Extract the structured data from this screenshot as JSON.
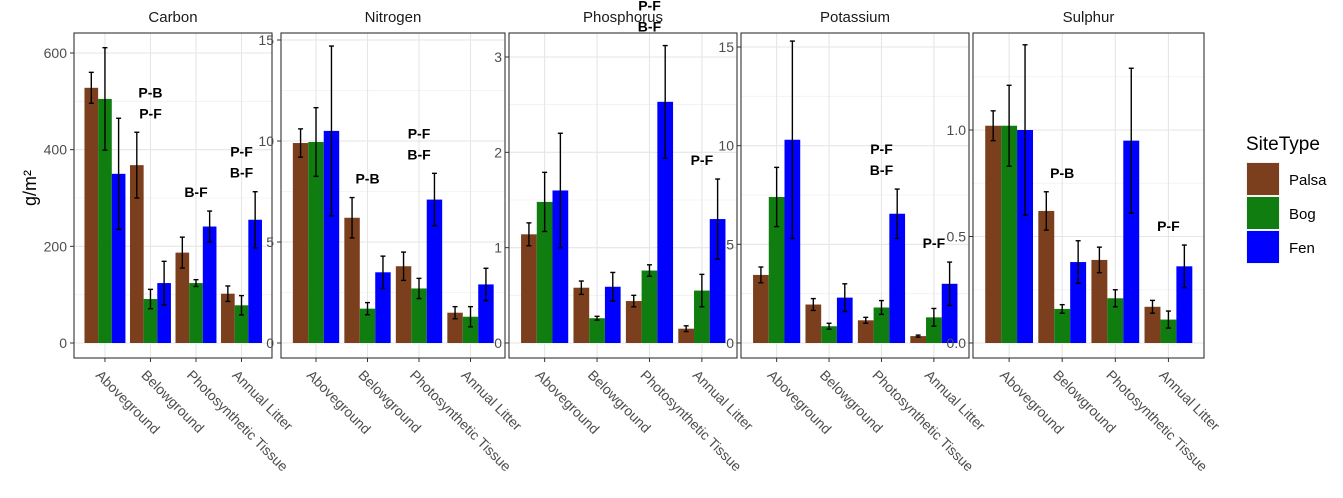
{
  "chart_data": {
    "type": "bar",
    "ylabel": "g/m²",
    "categories": [
      "Aboveground",
      "Belowground",
      "Photosynthetic Tissue",
      "Annual Litter"
    ],
    "legend": {
      "title": "SiteType",
      "position": "right",
      "entries": [
        {
          "name": "Palsa",
          "color": "#7b3f1e"
        },
        {
          "name": "Bog",
          "color": "#0f7d0f"
        },
        {
          "name": "Fen",
          "color": "#0000ff"
        }
      ]
    },
    "grid": true,
    "panels": [
      {
        "title": "Carbon",
        "ylim": [
          -10,
          665
        ],
        "yticks": [
          0,
          200,
          400,
          600
        ],
        "yticklabels": [
          "0",
          "200",
          "400",
          "600"
        ],
        "series": [
          {
            "name": "Palsa",
            "values": [
              528,
              368,
              187,
              102
            ],
            "errors": [
              32,
              68,
              32,
              16
            ]
          },
          {
            "name": "Bog",
            "values": [
              505,
              91,
              124,
              78
            ],
            "errors": [
              106,
              20,
              7,
              20
            ]
          },
          {
            "name": "Fen",
            "values": [
              350,
              124,
              241,
              255
            ],
            "errors": [
              115,
              45,
              32,
              58
            ]
          }
        ],
        "annotations": [
          {
            "category": 1,
            "lines": [
              "P-B",
              "P-F"
            ]
          },
          {
            "category": 2,
            "lines": [
              "B-F"
            ]
          },
          {
            "category": 3,
            "lines": [
              "P-F",
              "B-F"
            ]
          }
        ]
      },
      {
        "title": "Nitrogen",
        "ylim": [
          -0.2,
          16
        ],
        "yticks": [
          0,
          5,
          10,
          15
        ],
        "yticklabels": [
          "0",
          "5",
          "10",
          "15"
        ],
        "series": [
          {
            "name": "Palsa",
            "values": [
              9.9,
              6.2,
              3.8,
              1.5
            ],
            "errors": [
              0.7,
              1.0,
              0.7,
              0.3
            ]
          },
          {
            "name": "Bog",
            "values": [
              9.95,
              1.7,
              2.7,
              1.3
            ],
            "errors": [
              1.7,
              0.3,
              0.5,
              0.5
            ]
          },
          {
            "name": "Fen",
            "values": [
              10.5,
              3.5,
              7.1,
              2.9
            ],
            "errors": [
              4.2,
              0.8,
              1.3,
              0.8
            ]
          }
        ],
        "annotations": [
          {
            "category": 1,
            "lines": [
              "P-B"
            ]
          },
          {
            "category": 2,
            "lines": [
              "P-F",
              "B-F"
            ]
          }
        ]
      },
      {
        "title": "Phosphorus",
        "ylim": [
          -0.05,
          3.25
        ],
        "yticks": [
          0,
          1,
          2,
          3
        ],
        "yticklabels": [
          "0",
          "1",
          "2",
          "3"
        ],
        "series": [
          {
            "name": "Palsa",
            "values": [
              1.14,
              0.58,
              0.44,
              0.15
            ],
            "errors": [
              0.12,
              0.07,
              0.06,
              0.03
            ]
          },
          {
            "name": "Bog",
            "values": [
              1.48,
              0.26,
              0.76,
              0.55
            ],
            "errors": [
              0.31,
              0.02,
              0.06,
              0.17
            ]
          },
          {
            "name": "Fen",
            "values": [
              1.6,
              0.59,
              2.53,
              1.3
            ],
            "errors": [
              0.6,
              0.15,
              0.59,
              0.42
            ]
          }
        ],
        "annotations": [
          {
            "category": 2,
            "lines": [
              "P-F",
              "B-F"
            ]
          },
          {
            "category": 3,
            "lines": [
              "P-F"
            ]
          }
        ]
      },
      {
        "title": "Potassium",
        "ylim": [
          -0.2,
          16.3
        ],
        "yticks": [
          0,
          5,
          10,
          15
        ],
        "yticklabels": [
          "0",
          "5",
          "10",
          "15"
        ],
        "series": [
          {
            "name": "Palsa",
            "values": [
              3.45,
              1.95,
              1.15,
              0.35
            ],
            "errors": [
              0.4,
              0.3,
              0.15,
              0.05
            ]
          },
          {
            "name": "Bog",
            "values": [
              7.4,
              0.85,
              1.8,
              1.3
            ],
            "errors": [
              1.5,
              0.15,
              0.35,
              0.45
            ]
          },
          {
            "name": "Fen",
            "values": [
              10.3,
              2.3,
              6.55,
              3.0
            ],
            "errors": [
              5.0,
              0.7,
              1.25,
              1.1
            ]
          }
        ],
        "annotations": [
          {
            "category": 2,
            "lines": [
              "P-F",
              "B-F"
            ]
          },
          {
            "category": 3,
            "lines": [
              "P-F"
            ]
          }
        ]
      },
      {
        "title": "Sulphur",
        "ylim": [
          -0.03,
          1.45
        ],
        "yticks": [
          0,
          0.5,
          1
        ],
        "yticklabels": [
          "0.0",
          "0.5",
          "1.0"
        ],
        "series": [
          {
            "name": "Palsa",
            "values": [
              1.02,
              0.62,
              0.39,
              0.17
            ],
            "errors": [
              0.07,
              0.09,
              0.06,
              0.03
            ]
          },
          {
            "name": "Bog",
            "values": [
              1.02,
              0.16,
              0.21,
              0.11
            ],
            "errors": [
              0.19,
              0.02,
              0.04,
              0.04
            ]
          },
          {
            "name": "Fen",
            "values": [
              1.0,
              0.38,
              0.95,
              0.36
            ],
            "errors": [
              0.4,
              0.1,
              0.34,
              0.1
            ]
          }
        ],
        "annotations": [
          {
            "category": 1,
            "lines": [
              "P-B"
            ]
          },
          {
            "category": 3,
            "lines": [
              "P-F"
            ]
          }
        ]
      }
    ]
  }
}
